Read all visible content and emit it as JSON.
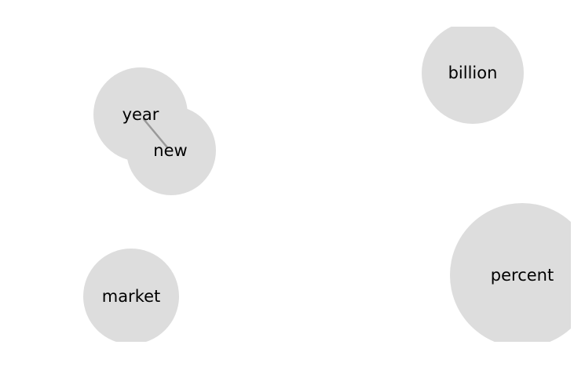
{
  "diagram": {
    "node_color": "#dddddd",
    "edge_color": "#999999",
    "nodes": [
      {
        "id": "year",
        "label": "year"
      },
      {
        "id": "new",
        "label": "new"
      },
      {
        "id": "billion",
        "label": "billion"
      },
      {
        "id": "market",
        "label": "market"
      },
      {
        "id": "percent",
        "label": "percent"
      }
    ],
    "edges": [
      {
        "source": "year",
        "target": "new"
      }
    ]
  }
}
